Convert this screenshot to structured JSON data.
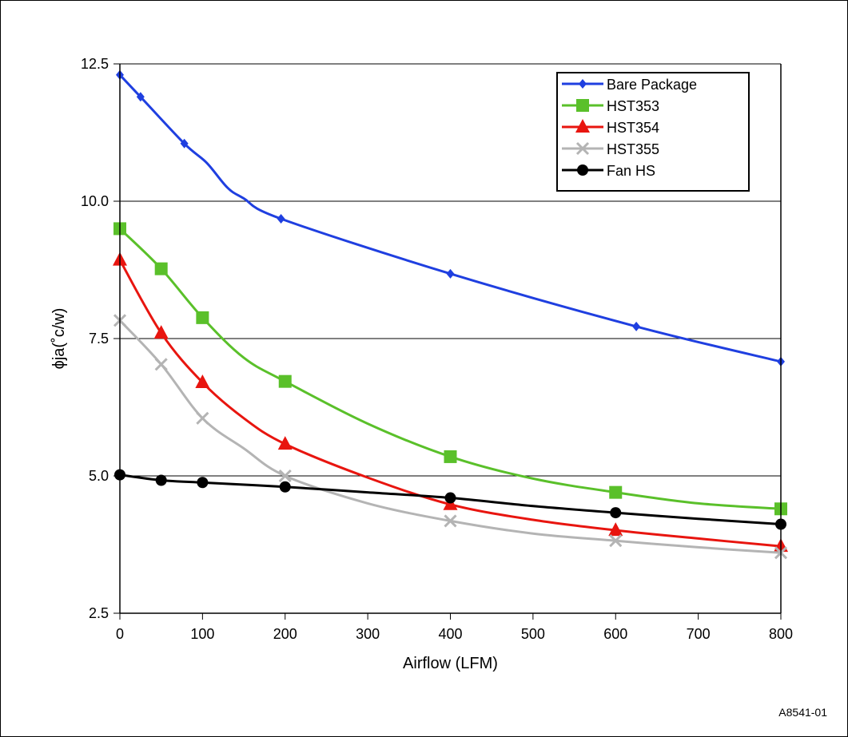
{
  "figure_id": "A8541-01",
  "chart_data": {
    "type": "line",
    "title": "",
    "xlabel": "Airflow (LFM)",
    "ylabel": "ϕja(˚c/w)",
    "xlim": [
      0,
      800
    ],
    "ylim": [
      2.5,
      12.5
    ],
    "x_ticks": [
      "0",
      "100",
      "200",
      "300",
      "400",
      "500",
      "600",
      "700",
      "800"
    ],
    "y_ticks": [
      "2.5",
      "5.0",
      "7.5",
      "10.0",
      "12.5"
    ],
    "grid": "horizontal",
    "legend_position": "top-right",
    "series": [
      {
        "name": "Bare Package",
        "color": "#1f3fe0",
        "marker": "diamond",
        "points": [
          [
            0,
            12.3
          ],
          [
            25,
            11.9
          ],
          [
            78,
            11.05
          ],
          [
            105,
            10.7
          ],
          [
            130,
            10.25
          ],
          [
            150,
            10.05
          ],
          [
            195,
            9.68
          ],
          [
            400,
            8.68
          ],
          [
            625,
            7.72
          ],
          [
            800,
            7.08
          ]
        ],
        "marker_points": [
          [
            0,
            12.3
          ],
          [
            25,
            11.9
          ],
          [
            78,
            11.05
          ],
          [
            195,
            9.68
          ],
          [
            400,
            8.68
          ],
          [
            625,
            7.72
          ],
          [
            800,
            7.08
          ]
        ]
      },
      {
        "name": "HST353",
        "color": "#5ac02a",
        "marker": "square",
        "points": [
          [
            0,
            9.5
          ],
          [
            50,
            8.77
          ],
          [
            100,
            7.88
          ],
          [
            150,
            7.15
          ],
          [
            200,
            6.72
          ],
          [
            300,
            5.95
          ],
          [
            400,
            5.35
          ],
          [
            500,
            4.95
          ],
          [
            600,
            4.7
          ],
          [
            700,
            4.5
          ],
          [
            800,
            4.4
          ]
        ],
        "marker_points": [
          [
            0,
            9.5
          ],
          [
            50,
            8.77
          ],
          [
            100,
            7.88
          ],
          [
            200,
            6.72
          ],
          [
            400,
            5.35
          ],
          [
            600,
            4.7
          ],
          [
            800,
            4.4
          ]
        ]
      },
      {
        "name": "HST354",
        "color": "#e8150f",
        "marker": "triangle",
        "points": [
          [
            0,
            8.93
          ],
          [
            50,
            7.6
          ],
          [
            100,
            6.7
          ],
          [
            150,
            6.05
          ],
          [
            200,
            5.58
          ],
          [
            300,
            4.97
          ],
          [
            400,
            4.48
          ],
          [
            500,
            4.2
          ],
          [
            600,
            4.01
          ],
          [
            700,
            3.86
          ],
          [
            800,
            3.72
          ]
        ],
        "marker_points": [
          [
            0,
            8.93
          ],
          [
            50,
            7.6
          ],
          [
            100,
            6.7
          ],
          [
            200,
            5.58
          ],
          [
            400,
            4.48
          ],
          [
            600,
            4.01
          ],
          [
            800,
            3.72
          ]
        ]
      },
      {
        "name": "HST355",
        "color": "#b4b4b4",
        "marker": "x",
        "points": [
          [
            0,
            7.83
          ],
          [
            50,
            7.03
          ],
          [
            100,
            6.05
          ],
          [
            150,
            5.5
          ],
          [
            200,
            5.0
          ],
          [
            300,
            4.5
          ],
          [
            400,
            4.18
          ],
          [
            500,
            3.95
          ],
          [
            600,
            3.82
          ],
          [
            700,
            3.7
          ],
          [
            800,
            3.6
          ]
        ],
        "marker_points": [
          [
            0,
            7.83
          ],
          [
            50,
            7.03
          ],
          [
            100,
            6.05
          ],
          [
            200,
            5.0
          ],
          [
            400,
            4.18
          ],
          [
            600,
            3.82
          ],
          [
            800,
            3.6
          ]
        ]
      },
      {
        "name": "Fan HS",
        "color": "#000000",
        "marker": "circle",
        "points": [
          [
            0,
            5.02
          ],
          [
            50,
            4.92
          ],
          [
            100,
            4.88
          ],
          [
            200,
            4.8
          ],
          [
            300,
            4.7
          ],
          [
            400,
            4.6
          ],
          [
            500,
            4.45
          ],
          [
            600,
            4.33
          ],
          [
            700,
            4.22
          ],
          [
            800,
            4.12
          ]
        ],
        "marker_points": [
          [
            0,
            5.02
          ],
          [
            50,
            4.92
          ],
          [
            100,
            4.88
          ],
          [
            200,
            4.8
          ],
          [
            400,
            4.6
          ],
          [
            600,
            4.33
          ],
          [
            800,
            4.12
          ]
        ]
      }
    ]
  }
}
